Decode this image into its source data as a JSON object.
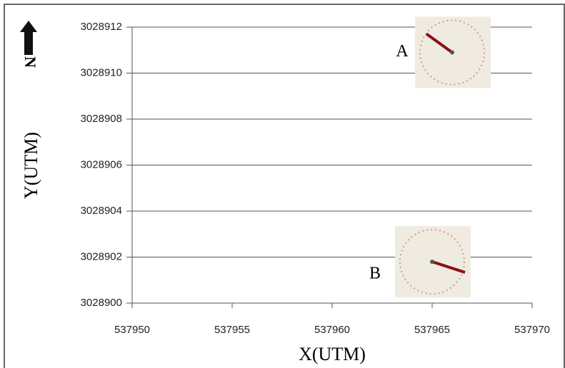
{
  "chart_data": {
    "type": "scatter",
    "x_label": "X(UTM)",
    "y_label": "Y(UTM)",
    "north_label": "N",
    "xlim": [
      537950,
      537970
    ],
    "xticks": [
      537950,
      537955,
      537960,
      537965,
      537970
    ],
    "ylim": [
      3028900,
      3028912
    ],
    "yticks": [
      3028900,
      3028902,
      3028904,
      3028906,
      3028908,
      3028910,
      3028912
    ],
    "grid": true,
    "points": {
      "x": [
        537966,
        537965
      ],
      "y": [
        3028910.9,
        3028901.8
      ],
      "labels": [
        "A",
        "B"
      ]
    }
  }
}
